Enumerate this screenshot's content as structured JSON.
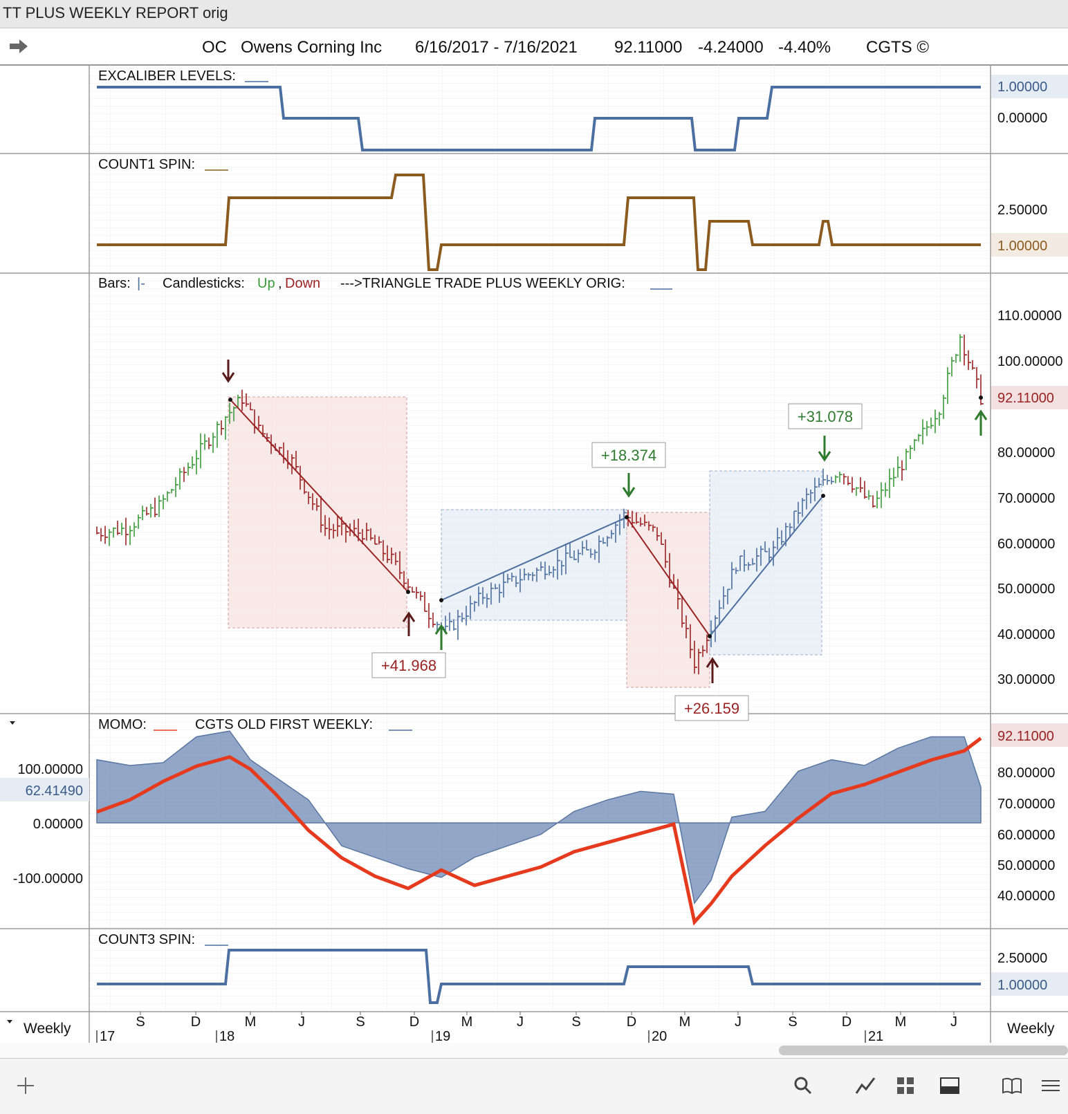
{
  "window": {
    "title": "TT PLUS WEEKLY REPORT orig"
  },
  "header": {
    "symbol": "OC",
    "company": "Owens Corning Inc",
    "date_range": "6/16/2017 - 7/16/2021",
    "price": "92.11000",
    "change": "-4.24000",
    "change_pct": "-4.40%",
    "brand": "CGTS ©"
  },
  "panels": {
    "excaliber": {
      "label": "EXCALIBER LEVELS:",
      "ticks": [
        "1.00000",
        "0.00000"
      ]
    },
    "count1": {
      "label": "COUNT1 SPIN:",
      "ticks": [
        "2.50000",
        "1.00000"
      ]
    },
    "price": {
      "legend_bars": "Bars:",
      "legend_bars_glyph": "|-",
      "legend_candles": "Candlesticks:",
      "legend_up": "Up",
      "legend_comma": ",",
      "legend_down": "Down",
      "legend_tt": "--->TRIANGLE TRADE PLUS WEEKLY ORIG:",
      "ticks": [
        "110.00000",
        "100.00000",
        "80.00000",
        "70.00000",
        "60.00000",
        "50.00000",
        "40.00000",
        "30.00000"
      ],
      "last_price": "92.11000",
      "trade_labels": [
        "+41.968",
        "+18.374",
        "+26.159",
        "+31.078"
      ]
    },
    "momo": {
      "label_momo": "MOMO:",
      "label_cgts": "CGTS OLD FIRST WEEKLY:",
      "left_ticks": [
        "100.00000",
        "0.00000",
        "-100.00000"
      ],
      "left_value": "62.41490",
      "right_value": "92.11000",
      "right_ticks": [
        "80.00000",
        "70.00000",
        "60.00000",
        "50.00000",
        "40.00000"
      ]
    },
    "count3": {
      "label": "COUNT3 SPIN:",
      "ticks": [
        "2.50000",
        "1.00000"
      ]
    }
  },
  "time_axis": {
    "months": [
      "S",
      "D",
      "M",
      "J",
      "S",
      "D",
      "M",
      "J",
      "S",
      "D",
      "M",
      "J",
      "S",
      "D",
      "M",
      "J"
    ],
    "years": [
      "17",
      "18",
      "19",
      "20",
      "21"
    ],
    "left_label": "Weekly",
    "right_label": "Weekly"
  },
  "colors": {
    "up": "#3a9a3a",
    "down": "#9b2222",
    "blue_line": "#4a6fa0",
    "brown_line": "#8b5a1e",
    "momo_red": "#e53a1e",
    "momo_fill": "#7f97bd"
  },
  "toolbar": {
    "icons": [
      "plus-icon",
      "search-icon",
      "line-chart-icon",
      "grid-icon",
      "panel-icon",
      "book-icon",
      "menu-icon"
    ]
  },
  "chart_data": [
    {
      "type": "line",
      "title": "EXCALIBER LEVELS",
      "x": [
        "2017-06-16",
        "2017-12-29",
        "2018-01-05",
        "2018-07-06",
        "2018-07-13",
        "2019-11-22",
        "2019-11-29",
        "2020-03-20",
        "2020-03-27",
        "2020-06-05",
        "2020-06-12",
        "2020-07-03",
        "2020-07-10",
        "2021-07-16"
      ],
      "series": [
        {
          "values": [
            1,
            1,
            0,
            0,
            -1,
            -1,
            0,
            0,
            -1,
            -1,
            0,
            0,
            1,
            1
          ]
        }
      ],
      "yticks": [
        1,
        0
      ]
    },
    {
      "type": "line",
      "title": "COUNT1 SPIN",
      "x": [
        "2017-06-16",
        "2018-02-16",
        "2018-02-23",
        "2018-11-30",
        "2018-12-07",
        "2019-02-22",
        "2019-03-08",
        "2019-11-15",
        "2019-11-22",
        "2020-03-13",
        "2020-03-20",
        "2020-04-03",
        "2020-04-10",
        "2020-06-26",
        "2020-07-03",
        "2020-11-13",
        "2020-11-20",
        "2020-12-04",
        "2020-12-11",
        "2021-07-16"
      ],
      "series": [
        {
          "values": [
            1,
            1,
            2,
            2,
            3,
            3,
            0,
            1,
            1,
            2,
            2,
            0,
            1.5,
            1.5,
            1,
            1,
            1.5,
            1,
            1,
            1
          ]
        }
      ],
      "yticks": [
        2.5,
        1
      ]
    },
    {
      "type": "line",
      "title": "TRIANGLE TRADE PLUS WEEKLY ORIG",
      "x": [
        "2017-06-16",
        "2017-08-04",
        "2017-09-29",
        "2017-11-24",
        "2018-01-19",
        "2018-02-16",
        "2018-03-16",
        "2018-05-11",
        "2018-07-06",
        "2018-09-07",
        "2018-10-26",
        "2018-12-28",
        "2019-01-25",
        "2019-03-29",
        "2019-05-31",
        "2019-07-26",
        "2019-09-27",
        "2019-11-22",
        "2020-01-17",
        "2020-03-20",
        "2020-04-03",
        "2020-05-29",
        "2020-07-31",
        "2020-09-25",
        "2020-11-20",
        "2021-01-15",
        "2021-03-19",
        "2021-05-07",
        "2021-06-11",
        "2021-07-16"
      ],
      "series": [
        {
          "name": "Price",
          "values": [
            62,
            63,
            68,
            78,
            88,
            92,
            85,
            78,
            63,
            62,
            56,
            44,
            40,
            48,
            52,
            55,
            58,
            66,
            62,
            33,
            37,
            55,
            58,
            70,
            76,
            68,
            80,
            90,
            106,
            92.11
          ]
        }
      ],
      "trades": [
        {
          "from": "2018-02-16",
          "to": "2018-11-30",
          "entry": 92,
          "exit": 50,
          "label": "+41.968",
          "direction": "short"
        },
        {
          "from": "2019-01-11",
          "to": "2019-11-29",
          "entry": 48,
          "exit": 66,
          "label": "+18.374",
          "direction": "long"
        },
        {
          "from": "2019-11-29",
          "to": "2020-04-10",
          "entry": 66,
          "exit": 40,
          "label": "+26.159",
          "direction": "short"
        },
        {
          "from": "2020-04-10",
          "to": "2020-11-06",
          "entry": 40,
          "exit": 71,
          "label": "+31.078",
          "direction": "long"
        }
      ],
      "yticks": [
        110,
        100,
        80,
        70,
        60,
        50,
        40,
        30
      ],
      "ylim": [
        26,
        112
      ],
      "last": 92.11
    },
    {
      "type": "area",
      "title": "MOMO / CGTS OLD FIRST WEEKLY",
      "x": [
        "2017-06-16",
        "2017-08-11",
        "2017-10-06",
        "2017-12-01",
        "2018-01-26",
        "2018-03-02",
        "2018-04-13",
        "2018-06-08",
        "2018-08-03",
        "2018-09-28",
        "2018-11-23",
        "2019-01-18",
        "2019-03-15",
        "2019-05-10",
        "2019-07-05",
        "2019-08-30",
        "2019-10-25",
        "2019-12-20",
        "2020-02-14",
        "2020-03-20",
        "2020-04-17",
        "2020-05-22",
        "2020-07-17",
        "2020-09-11",
        "2020-11-06",
        "2021-01-01",
        "2021-02-26",
        "2021-04-23",
        "2021-06-18",
        "2021-07-16"
      ],
      "series": [
        {
          "name": "MOMO",
          "values": [
            110,
            100,
            105,
            150,
            160,
            110,
            80,
            40,
            -40,
            -60,
            -80,
            -95,
            -60,
            -40,
            -20,
            20,
            40,
            55,
            50,
            -140,
            -100,
            10,
            20,
            90,
            110,
            100,
            130,
            150,
            150,
            62.4149
          ]
        },
        {
          "name": "CGTS OLD FIRST WEEKLY",
          "values": [
            68,
            72,
            78,
            83,
            86,
            82,
            74,
            62,
            53,
            47,
            43,
            49,
            44,
            47,
            50,
            55,
            58,
            61,
            64,
            32,
            38,
            47,
            57,
            66,
            74,
            77,
            81,
            85,
            88,
            92.11
          ]
        }
      ],
      "ylim_left": [
        -150,
        200
      ],
      "yticks_left": [
        100,
        0,
        -100
      ],
      "yticks_right": [
        80,
        70,
        60,
        50,
        40
      ],
      "last_left": 62.4149,
      "last_right": 92.11
    },
    {
      "type": "line",
      "title": "COUNT3 SPIN",
      "x": [
        "2017-06-16",
        "2018-02-16",
        "2018-02-23",
        "2018-12-07",
        "2018-12-14",
        "2019-01-04",
        "2019-01-11",
        "2019-11-15",
        "2019-11-22",
        "2020-06-26",
        "2020-07-03",
        "2021-07-16"
      ],
      "series": [
        {
          "values": [
            1,
            1,
            3,
            3,
            0,
            0,
            1,
            1,
            2,
            2,
            1,
            1
          ]
        }
      ],
      "yticks": [
        2.5,
        1
      ]
    }
  ]
}
